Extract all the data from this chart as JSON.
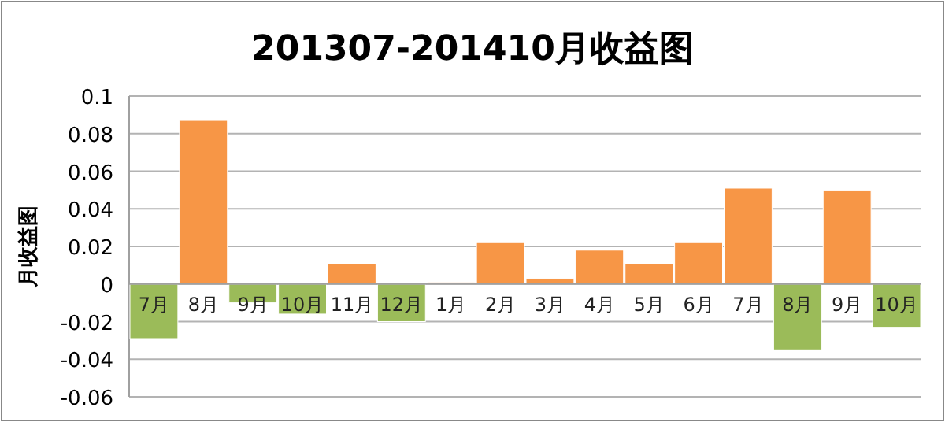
{
  "chart_data": {
    "type": "bar",
    "title": "201307-201410月收益图",
    "ylabel": "月收益图",
    "categories": [
      "7月",
      "8月",
      "9月",
      "10月",
      "11月",
      "12月",
      "1月",
      "2月",
      "3月",
      "4月",
      "5月",
      "6月",
      "7月",
      "8月",
      "9月",
      "10月"
    ],
    "values": [
      -0.029,
      0.087,
      -0.01,
      -0.016,
      0.011,
      -0.02,
      0.001,
      0.022,
      0.003,
      0.018,
      0.011,
      0.022,
      0.051,
      -0.035,
      0.05,
      -0.023
    ],
    "colors": [
      "#9bbb59",
      "#f79646",
      "#9bbb59",
      "#9bbb59",
      "#f79646",
      "#9bbb59",
      "#f79646",
      "#f79646",
      "#f79646",
      "#f79646",
      "#f79646",
      "#f79646",
      "#f79646",
      "#9bbb59",
      "#f79646",
      "#9bbb59"
    ],
    "ylim": [
      -0.06,
      0.1
    ],
    "yticks": [
      -0.06,
      -0.04,
      -0.02,
      0,
      0.02,
      0.04,
      0.06,
      0.08,
      0.1
    ],
    "grid": "y"
  }
}
